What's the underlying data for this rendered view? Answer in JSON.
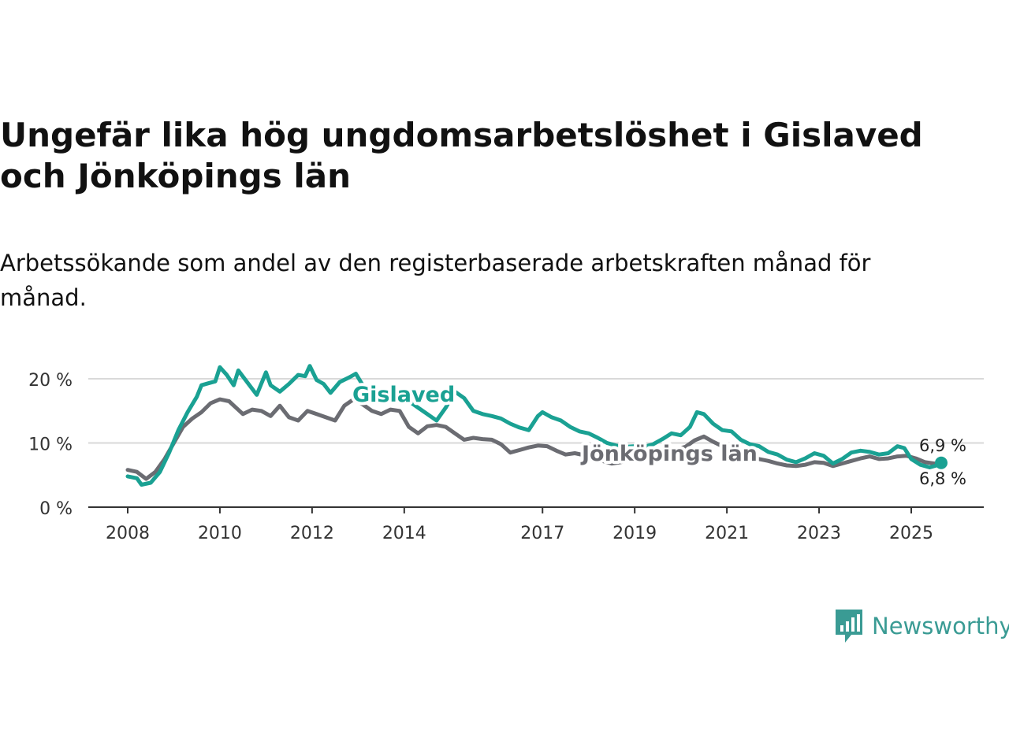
{
  "header": {
    "title": "Ungefär lika hög ungdomsarbetslöshet i Gislaved och Jönköpings län",
    "subtitle": "Arbetssökande som andel av den registerbaserade arbetskraften månad för månad."
  },
  "brand": {
    "name": "Newsworthy",
    "icon": "newsworthy-logo-icon",
    "color": "#3a9b94"
  },
  "chart_data": {
    "type": "line",
    "title": "Ungefär lika hög ungdomsarbetslöshet i Gislaved och Jönköpings län",
    "subtitle": "Arbetssökande som andel av den registerbaserade arbetskraften månad för månad.",
    "xlabel": "",
    "ylabel": "",
    "xlim": [
      2008,
      2025.9
    ],
    "ylim": [
      0,
      20
    ],
    "x_ticks": [
      2008,
      2010,
      2012,
      2014,
      2017,
      2019,
      2021,
      2023,
      2025
    ],
    "y_ticks": [
      {
        "value": 0,
        "label": "0 %"
      },
      {
        "value": 10,
        "label": "10 %"
      },
      {
        "value": 20,
        "label": "20 %"
      }
    ],
    "grid": true,
    "series": [
      {
        "name": "Gislaved",
        "color": "#1aa193",
        "end_label": "6,9 %",
        "points": [
          [
            2008.0,
            4.8
          ],
          [
            2008.2,
            4.5
          ],
          [
            2008.3,
            3.5
          ],
          [
            2008.5,
            3.8
          ],
          [
            2008.7,
            5.5
          ],
          [
            2008.9,
            8.5
          ],
          [
            2009.1,
            12.0
          ],
          [
            2009.3,
            14.8
          ],
          [
            2009.5,
            17.2
          ],
          [
            2009.6,
            19.0
          ],
          [
            2009.75,
            19.3
          ],
          [
            2009.9,
            19.6
          ],
          [
            2010.0,
            21.8
          ],
          [
            2010.15,
            20.6
          ],
          [
            2010.3,
            19.0
          ],
          [
            2010.4,
            21.3
          ],
          [
            2010.6,
            19.4
          ],
          [
            2010.8,
            17.5
          ],
          [
            2011.0,
            21.0
          ],
          [
            2011.1,
            19.0
          ],
          [
            2011.3,
            18.0
          ],
          [
            2011.5,
            19.2
          ],
          [
            2011.7,
            20.6
          ],
          [
            2011.85,
            20.4
          ],
          [
            2011.95,
            22.0
          ],
          [
            2012.1,
            19.8
          ],
          [
            2012.25,
            19.2
          ],
          [
            2012.4,
            17.8
          ],
          [
            2012.6,
            19.5
          ],
          [
            2012.8,
            20.2
          ],
          [
            2012.95,
            20.8
          ],
          [
            2013.1,
            19.0
          ],
          [
            2013.3,
            17.5
          ],
          [
            2013.5,
            17.3
          ],
          [
            2013.7,
            17.8
          ],
          [
            2013.9,
            18.0
          ],
          [
            2014.1,
            16.5
          ],
          [
            2014.3,
            15.5
          ],
          [
            2014.5,
            14.5
          ],
          [
            2014.7,
            13.5
          ],
          [
            2014.9,
            15.5
          ],
          [
            2015.1,
            18.0
          ],
          [
            2015.3,
            17.0
          ],
          [
            2015.5,
            15.0
          ],
          [
            2015.7,
            14.5
          ],
          [
            2015.9,
            14.2
          ],
          [
            2016.1,
            13.8
          ],
          [
            2016.3,
            13.0
          ],
          [
            2016.5,
            12.4
          ],
          [
            2016.7,
            12.0
          ],
          [
            2016.9,
            14.2
          ],
          [
            2017.0,
            14.8
          ],
          [
            2017.2,
            14.0
          ],
          [
            2017.4,
            13.5
          ],
          [
            2017.6,
            12.5
          ],
          [
            2017.8,
            11.8
          ],
          [
            2018.0,
            11.5
          ],
          [
            2018.2,
            10.8
          ],
          [
            2018.4,
            10.0
          ],
          [
            2018.6,
            9.6
          ],
          [
            2018.8,
            9.4
          ],
          [
            2019.0,
            9.5
          ],
          [
            2019.2,
            9.4
          ],
          [
            2019.4,
            9.8
          ],
          [
            2019.6,
            10.6
          ],
          [
            2019.8,
            11.5
          ],
          [
            2020.0,
            11.2
          ],
          [
            2020.2,
            12.5
          ],
          [
            2020.35,
            14.8
          ],
          [
            2020.5,
            14.5
          ],
          [
            2020.7,
            13.0
          ],
          [
            2020.9,
            12.0
          ],
          [
            2021.1,
            11.8
          ],
          [
            2021.3,
            10.5
          ],
          [
            2021.5,
            9.8
          ],
          [
            2021.7,
            9.5
          ],
          [
            2021.9,
            8.6
          ],
          [
            2022.1,
            8.2
          ],
          [
            2022.3,
            7.4
          ],
          [
            2022.5,
            7.0
          ],
          [
            2022.7,
            7.6
          ],
          [
            2022.9,
            8.4
          ],
          [
            2023.1,
            8.0
          ],
          [
            2023.3,
            6.8
          ],
          [
            2023.5,
            7.5
          ],
          [
            2023.7,
            8.5
          ],
          [
            2023.9,
            8.8
          ],
          [
            2024.1,
            8.6
          ],
          [
            2024.3,
            8.2
          ],
          [
            2024.5,
            8.4
          ],
          [
            2024.7,
            9.5
          ],
          [
            2024.85,
            9.2
          ],
          [
            2025.0,
            7.5
          ],
          [
            2025.2,
            6.6
          ],
          [
            2025.4,
            6.2
          ],
          [
            2025.55,
            6.5
          ],
          [
            2025.65,
            6.9
          ]
        ]
      },
      {
        "name": "Jönköpings län",
        "color": "#6b6c72",
        "end_label": "6,8 %",
        "points": [
          [
            2008.0,
            5.8
          ],
          [
            2008.2,
            5.5
          ],
          [
            2008.4,
            4.4
          ],
          [
            2008.6,
            5.5
          ],
          [
            2008.8,
            7.5
          ],
          [
            2009.0,
            10.0
          ],
          [
            2009.2,
            12.5
          ],
          [
            2009.4,
            13.8
          ],
          [
            2009.6,
            14.8
          ],
          [
            2009.8,
            16.2
          ],
          [
            2010.0,
            16.8
          ],
          [
            2010.2,
            16.5
          ],
          [
            2010.35,
            15.5
          ],
          [
            2010.5,
            14.5
          ],
          [
            2010.7,
            15.2
          ],
          [
            2010.9,
            15.0
          ],
          [
            2011.1,
            14.2
          ],
          [
            2011.3,
            15.8
          ],
          [
            2011.5,
            14.0
          ],
          [
            2011.7,
            13.5
          ],
          [
            2011.9,
            15.0
          ],
          [
            2012.1,
            14.5
          ],
          [
            2012.3,
            14.0
          ],
          [
            2012.5,
            13.5
          ],
          [
            2012.7,
            15.8
          ],
          [
            2012.9,
            16.8
          ],
          [
            2013.1,
            16.0
          ],
          [
            2013.3,
            15.0
          ],
          [
            2013.5,
            14.5
          ],
          [
            2013.7,
            15.2
          ],
          [
            2013.9,
            15.0
          ],
          [
            2014.1,
            12.5
          ],
          [
            2014.3,
            11.5
          ],
          [
            2014.5,
            12.6
          ],
          [
            2014.7,
            12.8
          ],
          [
            2014.9,
            12.5
          ],
          [
            2015.1,
            11.5
          ],
          [
            2015.3,
            10.5
          ],
          [
            2015.5,
            10.8
          ],
          [
            2015.7,
            10.6
          ],
          [
            2015.9,
            10.5
          ],
          [
            2016.1,
            9.8
          ],
          [
            2016.3,
            8.5
          ],
          [
            2016.5,
            8.9
          ],
          [
            2016.7,
            9.3
          ],
          [
            2016.9,
            9.6
          ],
          [
            2017.1,
            9.5
          ],
          [
            2017.3,
            8.8
          ],
          [
            2017.5,
            8.2
          ],
          [
            2017.7,
            8.4
          ],
          [
            2017.9,
            8.1
          ],
          [
            2018.1,
            7.5
          ],
          [
            2018.3,
            7.2
          ],
          [
            2018.5,
            6.8
          ],
          [
            2018.7,
            7.0
          ],
          [
            2018.9,
            7.4
          ],
          [
            2019.1,
            7.2
          ],
          [
            2019.3,
            7.6
          ],
          [
            2019.5,
            8.2
          ],
          [
            2019.7,
            8.6
          ],
          [
            2019.9,
            9.0
          ],
          [
            2020.1,
            9.4
          ],
          [
            2020.3,
            10.4
          ],
          [
            2020.5,
            11.0
          ],
          [
            2020.7,
            10.2
          ],
          [
            2020.9,
            9.5
          ],
          [
            2021.1,
            8.8
          ],
          [
            2021.3,
            8.2
          ],
          [
            2021.5,
            7.8
          ],
          [
            2021.7,
            7.5
          ],
          [
            2021.9,
            7.2
          ],
          [
            2022.1,
            6.8
          ],
          [
            2022.3,
            6.5
          ],
          [
            2022.5,
            6.4
          ],
          [
            2022.7,
            6.6
          ],
          [
            2022.9,
            7.0
          ],
          [
            2023.1,
            6.9
          ],
          [
            2023.3,
            6.4
          ],
          [
            2023.5,
            6.8
          ],
          [
            2023.7,
            7.2
          ],
          [
            2023.9,
            7.6
          ],
          [
            2024.1,
            7.9
          ],
          [
            2024.3,
            7.5
          ],
          [
            2024.5,
            7.6
          ],
          [
            2024.7,
            7.9
          ],
          [
            2024.9,
            8.0
          ],
          [
            2025.1,
            7.6
          ],
          [
            2025.3,
            7.0
          ],
          [
            2025.5,
            6.8
          ],
          [
            2025.65,
            6.8
          ]
        ]
      }
    ],
    "inline_labels": [
      "Gislaved",
      "Jönköpings län"
    ]
  }
}
